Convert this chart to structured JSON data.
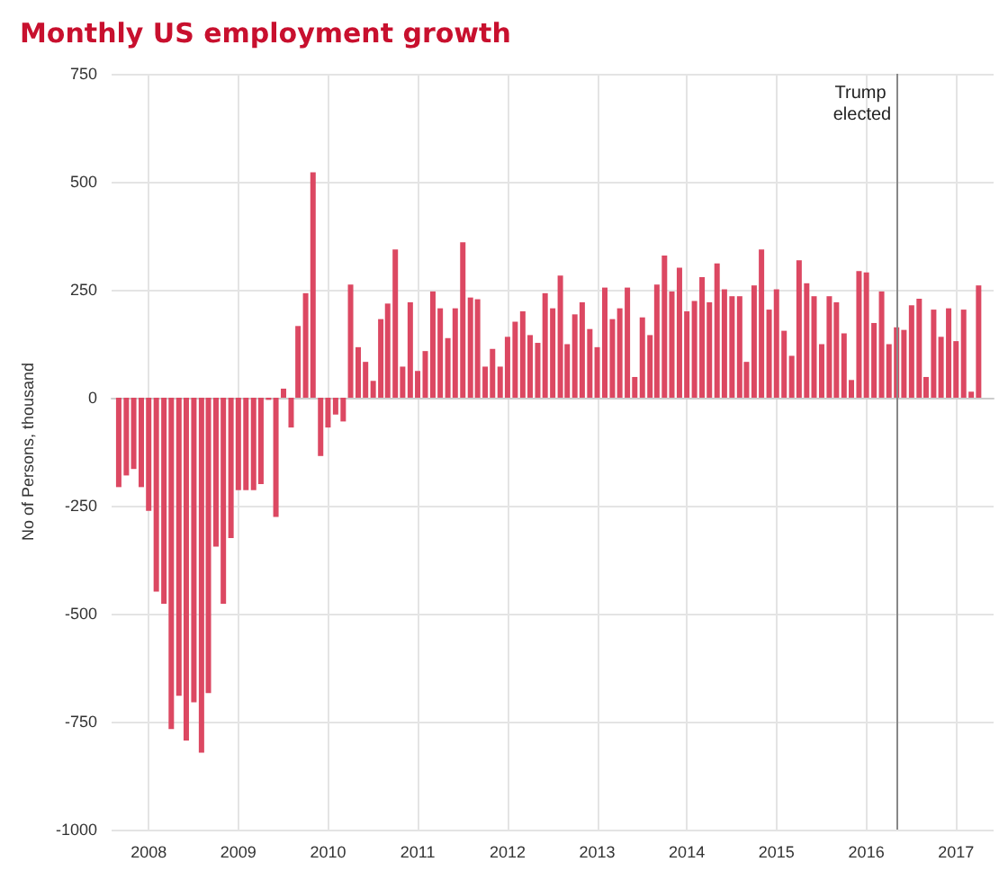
{
  "chart_data": {
    "type": "bar",
    "title": "Monthly US employment growth",
    "ylabel": "No of Persons, thousand",
    "x": [
      "2008-03",
      "2008-04",
      "2008-05",
      "2008-06",
      "2008-07",
      "2008-08",
      "2008-09",
      "2008-10",
      "2008-11",
      "2008-12",
      "2009-01",
      "2009-02",
      "2009-03",
      "2009-04",
      "2009-05",
      "2009-06",
      "2009-07",
      "2009-08",
      "2009-09",
      "2009-10",
      "2009-11",
      "2009-12",
      "2010-01",
      "2010-02",
      "2010-03",
      "2010-04",
      "2010-05",
      "2010-06",
      "2010-07",
      "2010-08",
      "2010-09",
      "2010-10",
      "2010-11",
      "2010-12",
      "2011-01",
      "2011-02",
      "2011-03",
      "2011-04",
      "2011-05",
      "2011-06",
      "2011-07",
      "2011-08",
      "2011-09",
      "2011-10",
      "2011-11",
      "2011-12",
      "2012-01",
      "2012-02",
      "2012-03",
      "2012-04",
      "2012-05",
      "2012-06",
      "2012-07",
      "2012-08",
      "2012-09",
      "2012-10",
      "2012-11",
      "2012-12",
      "2013-01",
      "2013-02",
      "2013-03",
      "2013-04",
      "2013-05",
      "2013-06",
      "2013-07",
      "2013-08",
      "2013-09",
      "2013-10",
      "2013-11",
      "2013-12",
      "2014-01",
      "2014-02",
      "2014-03",
      "2014-04",
      "2014-05",
      "2014-06",
      "2014-07",
      "2014-08",
      "2014-09",
      "2014-10",
      "2014-11",
      "2014-12",
      "2015-01",
      "2015-02",
      "2015-03",
      "2015-04",
      "2015-05",
      "2015-06",
      "2015-07",
      "2015-08",
      "2015-09",
      "2015-10",
      "2015-11",
      "2015-12",
      "2016-01",
      "2016-02",
      "2016-03",
      "2016-04",
      "2016-05",
      "2016-06",
      "2016-07",
      "2016-08",
      "2016-09",
      "2016-10",
      "2016-11",
      "2016-12",
      "2017-01",
      "2017-02",
      "2017-03",
      "2017-04",
      "2017-05",
      "2017-06",
      "2017-07",
      "2017-08",
      "2017-09",
      "2017-10"
    ],
    "values": [
      -207,
      -180,
      -165,
      -207,
      -262,
      -449,
      -477,
      -767,
      -690,
      -794,
      -705,
      -822,
      -684,
      -345,
      -477,
      -325,
      -214,
      -214,
      -214,
      -200,
      -5,
      -276,
      21,
      -69,
      166,
      242,
      522,
      -135,
      -69,
      -39,
      -55,
      262,
      117,
      83,
      39,
      182,
      218,
      343,
      72,
      221,
      62,
      108,
      246,
      207,
      138,
      207,
      360,
      232,
      228,
      72,
      113,
      72,
      141,
      176,
      200,
      145,
      127,
      242,
      207,
      283,
      124,
      193,
      221,
      159,
      117,
      255,
      182,
      207,
      255,
      48,
      186,
      145,
      262,
      329,
      246,
      301,
      200,
      224,
      279,
      221,
      311,
      251,
      235,
      235,
      83,
      260,
      343,
      204,
      251,
      155,
      97,
      318,
      265,
      235,
      124,
      235,
      221,
      149,
      41,
      293,
      290,
      173,
      246,
      124,
      163,
      157,
      214,
      229,
      48,
      204,
      141,
      207,
      131,
      204,
      14,
      260
    ],
    "color": "#dc4862",
    "xlim": [
      "2008-02",
      "2017-12"
    ],
    "xticks": [
      {
        "value": "2008-07",
        "label": "2008"
      },
      {
        "value": "2009-07",
        "label": "2009"
      },
      {
        "value": "2010-07",
        "label": "2010"
      },
      {
        "value": "2011-07",
        "label": "2011"
      },
      {
        "value": "2012-07",
        "label": "2012"
      },
      {
        "value": "2013-07",
        "label": "2013"
      },
      {
        "value": "2014-07",
        "label": "2014"
      },
      {
        "value": "2015-07",
        "label": "2015"
      },
      {
        "value": "2016-07",
        "label": "2016"
      },
      {
        "value": "2017-07",
        "label": "2017"
      }
    ],
    "ylim": [
      -1000,
      750
    ],
    "yticks": [
      -1000,
      -750,
      -500,
      -250,
      0,
      250,
      500,
      750
    ],
    "ref_lines": [
      {
        "axis": "x",
        "value": "2016-11",
        "label": "Trump elected"
      }
    ],
    "grid": true
  }
}
